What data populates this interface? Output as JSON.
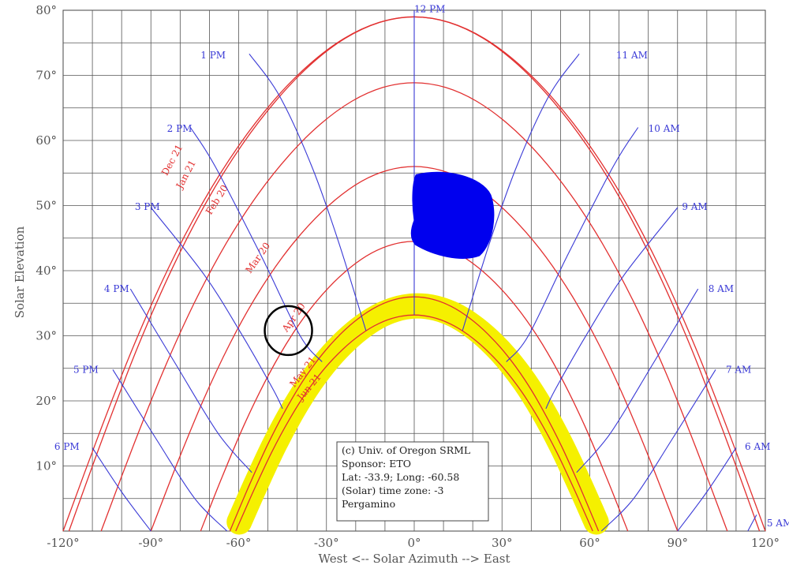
{
  "chart_data": {
    "type": "line",
    "xlabel": "West <-- Solar Azimuth --> East",
    "ylabel": "Solar Elevation",
    "xlim": [
      -120,
      120
    ],
    "ylim": [
      0,
      80
    ],
    "grid": true,
    "x_ticks": [
      "-120°",
      "-90°",
      "-60°",
      "-30°",
      "0°",
      "30°",
      "60°",
      "90°",
      "120°"
    ],
    "y_ticks": [
      "10°",
      "20°",
      "30°",
      "40°",
      "50°",
      "60°",
      "70°",
      "80°"
    ],
    "colors": {
      "date_lines": "#e23030",
      "hour_lines": "#3a3ad6",
      "grid": "#555555",
      "highlight": "#f5f000",
      "blob": "#0000ee",
      "circle": "#000000"
    },
    "date_series": [
      {
        "name": "Dec 21",
        "points": [
          [
            -120,
            0.0
          ],
          [
            -108,
            14.58
          ],
          [
            -96,
            28.34
          ],
          [
            -84,
            40.41
          ],
          [
            -72,
            50.67
          ],
          [
            -60,
            59.19
          ],
          [
            -48,
            66.14
          ],
          [
            -36,
            71.63
          ],
          [
            -24,
            75.66
          ],
          [
            -12,
            78.13
          ],
          [
            0,
            79.0
          ],
          [
            12,
            78.13
          ],
          [
            24,
            75.66
          ],
          [
            36,
            71.63
          ],
          [
            48,
            66.14
          ],
          [
            60,
            59.19
          ],
          [
            72,
            50.67
          ],
          [
            84,
            40.41
          ],
          [
            96,
            28.34
          ],
          [
            108,
            14.58
          ],
          [
            120,
            0.0
          ]
        ]
      },
      {
        "name": "Jan 21",
        "points": [
          [
            -118,
            0.0
          ],
          [
            -106.2,
            14.62
          ],
          [
            -94.4,
            28.37
          ],
          [
            -82.6,
            40.45
          ],
          [
            -70.8,
            50.73
          ],
          [
            -59,
            59.23
          ],
          [
            -47.2,
            66.15
          ],
          [
            -35.4,
            71.65
          ],
          [
            -23.6,
            75.68
          ],
          [
            -11.8,
            78.13
          ],
          [
            0,
            78.97
          ],
          [
            11.8,
            78.13
          ],
          [
            23.6,
            75.68
          ],
          [
            35.4,
            71.65
          ],
          [
            47.2,
            66.15
          ],
          [
            59,
            59.23
          ],
          [
            70.8,
            50.73
          ],
          [
            82.6,
            40.45
          ],
          [
            94.4,
            28.37
          ],
          [
            106.2,
            14.62
          ],
          [
            118,
            0.0
          ]
        ]
      },
      {
        "name": "Feb 20",
        "points": [
          [
            -107,
            0.0
          ],
          [
            -96.3,
            12.77
          ],
          [
            -85.6,
            24.76
          ],
          [
            -74.9,
            35.28
          ],
          [
            -64.2,
            44.25
          ],
          [
            -53.5,
            51.67
          ],
          [
            -42.8,
            57.71
          ],
          [
            -32.1,
            62.5
          ],
          [
            -21.4,
            66.0
          ],
          [
            -10.7,
            68.14
          ],
          [
            0,
            68.86
          ],
          [
            10.7,
            68.14
          ],
          [
            21.4,
            66.0
          ],
          [
            32.1,
            62.5
          ],
          [
            42.8,
            57.71
          ],
          [
            53.5,
            51.67
          ],
          [
            64.2,
            44.25
          ],
          [
            74.9,
            35.28
          ],
          [
            85.6,
            24.76
          ],
          [
            96.3,
            12.77
          ],
          [
            107,
            0.0
          ]
        ]
      },
      {
        "name": "Mar 20",
        "points": [
          [
            -90,
            0.0
          ],
          [
            -81,
            10.43
          ],
          [
            -72,
            20.2
          ],
          [
            -63,
            28.79
          ],
          [
            -54,
            36.07
          ],
          [
            -45,
            42.11
          ],
          [
            -36,
            47.0
          ],
          [
            -27,
            50.87
          ],
          [
            -18,
            53.73
          ],
          [
            -9,
            55.42
          ],
          [
            0,
            56.0
          ],
          [
            9,
            55.42
          ],
          [
            18,
            53.73
          ],
          [
            27,
            50.87
          ],
          [
            36,
            47.0
          ],
          [
            45,
            42.11
          ],
          [
            54,
            36.07
          ],
          [
            63,
            28.79
          ],
          [
            72,
            20.2
          ],
          [
            81,
            10.43
          ],
          [
            90,
            0.0
          ]
        ]
      },
      {
        "name": "Apr 20",
        "points": [
          [
            -73,
            0.0
          ],
          [
            -65.7,
            8.27
          ],
          [
            -58.4,
            16.04
          ],
          [
            -51.1,
            22.86
          ],
          [
            -43.8,
            28.71
          ],
          [
            -36.5,
            33.53
          ],
          [
            -29.2,
            37.42
          ],
          [
            -21.9,
            40.47
          ],
          [
            -14.6,
            42.7
          ],
          [
            -7.3,
            44.04
          ],
          [
            0,
            44.5
          ],
          [
            7.3,
            44.04
          ],
          [
            14.6,
            42.7
          ],
          [
            21.9,
            40.47
          ],
          [
            29.2,
            37.42
          ],
          [
            36.5,
            33.53
          ],
          [
            43.8,
            28.71
          ],
          [
            51.1,
            22.86
          ],
          [
            58.4,
            16.04
          ],
          [
            65.7,
            8.27
          ],
          [
            73,
            0.0
          ]
        ]
      },
      {
        "name": "May 21",
        "points": [
          [
            -63,
            0.0
          ],
          [
            -56.7,
            6.7
          ],
          [
            -50.4,
            12.99
          ],
          [
            -44.1,
            18.5
          ],
          [
            -37.8,
            23.23
          ],
          [
            -31.5,
            27.12
          ],
          [
            -25.2,
            30.25
          ],
          [
            -18.9,
            32.72
          ],
          [
            -12.6,
            34.52
          ],
          [
            -6.3,
            35.61
          ],
          [
            0,
            35.98
          ],
          [
            6.3,
            35.61
          ],
          [
            12.6,
            34.52
          ],
          [
            18.9,
            32.72
          ],
          [
            25.2,
            30.25
          ],
          [
            31.5,
            27.12
          ],
          [
            37.8,
            23.23
          ],
          [
            44.1,
            18.5
          ],
          [
            50.4,
            12.99
          ],
          [
            56.7,
            6.7
          ],
          [
            63,
            0.0
          ]
        ]
      },
      {
        "name": "Jun 21",
        "points": [
          [
            -61,
            0.0
          ],
          [
            -54.9,
            6.2
          ],
          [
            -48.8,
            12.03
          ],
          [
            -42.7,
            17.13
          ],
          [
            -36.6,
            21.48
          ],
          [
            -30.5,
            25.05
          ],
          [
            -24.4,
            27.93
          ],
          [
            -18.3,
            30.2
          ],
          [
            -12.2,
            31.86
          ],
          [
            -6.1,
            32.85
          ],
          [
            0,
            33.19
          ],
          [
            6.1,
            32.85
          ],
          [
            12.2,
            31.86
          ],
          [
            18.3,
            30.2
          ],
          [
            24.4,
            27.93
          ],
          [
            30.5,
            25.05
          ],
          [
            36.6,
            21.48
          ],
          [
            42.7,
            17.13
          ],
          [
            48.8,
            12.03
          ],
          [
            54.9,
            6.2
          ],
          [
            61,
            0.0
          ]
        ]
      }
    ],
    "hour_series": [
      {
        "name": "12 PM",
        "label_xy": [
          0,
          80.2
        ],
        "points": [
          [
            0,
            80
          ],
          [
            0,
            33.2
          ]
        ]
      },
      {
        "name": "1 PM",
        "label_xy": [
          -73,
          73.1
        ],
        "points": [
          [
            -56.4,
            73.3
          ],
          [
            -46.0,
            66.8
          ],
          [
            -35.0,
            56.0
          ],
          [
            -25.7,
            44.2
          ],
          [
            -16.5,
            30.8
          ]
        ]
      },
      {
        "name": "2 PM",
        "label_xy": [
          -84.5,
          61.8
        ],
        "points": [
          [
            -76.5,
            62.0
          ],
          [
            -68.0,
            56.0
          ],
          [
            -52.0,
            42.0
          ],
          [
            -39.0,
            30.0
          ],
          [
            -31.5,
            26.0
          ]
        ]
      },
      {
        "name": "3 PM",
        "label_xy": [
          -95.5,
          49.8
        ],
        "points": [
          [
            -90.0,
            49.7
          ],
          [
            -72.0,
            39.5
          ],
          [
            -60.0,
            31.0
          ],
          [
            -48.5,
            22.0
          ],
          [
            -45.0,
            18.8
          ]
        ]
      },
      {
        "name": "4 PM",
        "label_xy": [
          -106,
          37.2
        ],
        "points": [
          [
            -97.0,
            37.2
          ],
          [
            -82.0,
            26.0
          ],
          [
            -67.0,
            15.0
          ],
          [
            -55.5,
            9.0
          ]
        ]
      },
      {
        "name": "5 PM",
        "label_xy": [
          -116.5,
          24.8
        ],
        "points": [
          [
            -103.0,
            24.8
          ],
          [
            -88.0,
            14.0
          ],
          [
            -75.0,
            5.0
          ],
          [
            -64.0,
            0.0
          ]
        ]
      },
      {
        "name": "6 PM",
        "label_xy": [
          -123,
          13
        ],
        "points": [
          [
            -110.0,
            12.8
          ],
          [
            -100.0,
            6.0
          ],
          [
            -90.0,
            0.0
          ]
        ]
      },
      {
        "name": "11 AM",
        "label_xy": [
          69,
          73.1
        ],
        "points": [
          [
            56.4,
            73.3
          ],
          [
            46.0,
            66.8
          ],
          [
            35.0,
            56.0
          ],
          [
            25.7,
            44.2
          ],
          [
            16.5,
            30.8
          ]
        ]
      },
      {
        "name": "10 AM",
        "label_xy": [
          80,
          61.8
        ],
        "points": [
          [
            76.5,
            62.0
          ],
          [
            68.0,
            56.0
          ],
          [
            52.0,
            42.0
          ],
          [
            39.0,
            30.0
          ],
          [
            31.5,
            26.0
          ]
        ]
      },
      {
        "name": "9 AM",
        "label_xy": [
          91.5,
          49.8
        ],
        "points": [
          [
            90.0,
            49.7
          ],
          [
            72.0,
            39.5
          ],
          [
            60.0,
            31.0
          ],
          [
            48.5,
            22.0
          ],
          [
            45.0,
            18.8
          ]
        ]
      },
      {
        "name": "8 AM",
        "label_xy": [
          100.5,
          37.2
        ],
        "points": [
          [
            97.0,
            37.2
          ],
          [
            82.0,
            26.0
          ],
          [
            67.0,
            15.0
          ],
          [
            55.5,
            9.0
          ]
        ]
      },
      {
        "name": "7 AM",
        "label_xy": [
          106.5,
          24.8
        ],
        "points": [
          [
            103.0,
            24.8
          ],
          [
            88.0,
            14.0
          ],
          [
            75.0,
            5.0
          ],
          [
            64.0,
            0.0
          ]
        ]
      },
      {
        "name": "6 AM",
        "label_xy": [
          113,
          13
        ],
        "points": [
          [
            110.0,
            12.8
          ],
          [
            100.0,
            6.0
          ],
          [
            90.0,
            0.0
          ]
        ]
      },
      {
        "name": "5 AM",
        "label_xy": [
          120.5,
          1.2
        ],
        "points": [
          [
            117.0,
            2.5
          ],
          [
            114.0,
            0.0
          ]
        ]
      }
    ],
    "annotations": {
      "info_box": [
        "(c) Univ. of Oregon SRML",
        "Sponsor: ETO",
        "Lat: -33.9; Long: -60.58",
        "(Solar) time zone: -3",
        "Pergamino"
      ]
    }
  }
}
